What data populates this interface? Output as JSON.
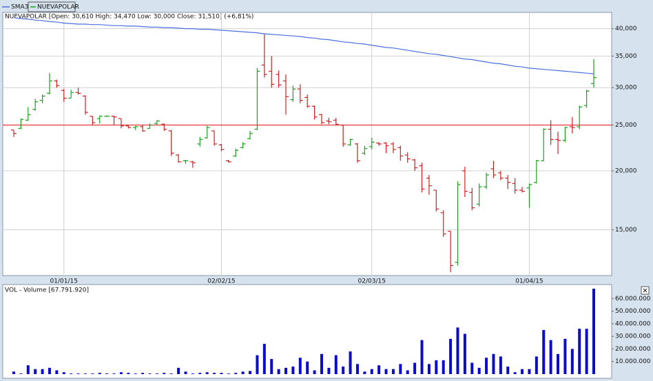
{
  "chart_data": [
    {
      "type": "ohlc",
      "header": "NUEVAPOLAR [Open: 30,610  High: 34,470  Low: 30,000  Close: 31,510] (+6,81%)",
      "categories": [
        null,
        null,
        null,
        null,
        null,
        null,
        null,
        "01/01/15",
        null,
        null,
        null,
        null,
        null,
        null,
        null,
        null,
        null,
        null,
        null,
        null,
        null,
        null,
        null,
        null,
        null,
        null,
        null,
        null,
        null,
        "02/02/15",
        null,
        null,
        null,
        null,
        null,
        null,
        null,
        null,
        null,
        null,
        null,
        null,
        null,
        null,
        null,
        null,
        null,
        null,
        null,
        null,
        "02/03/15",
        null,
        null,
        null,
        null,
        null,
        null,
        null,
        null,
        null,
        null,
        null,
        null,
        null,
        null,
        null,
        null,
        null,
        null,
        null,
        null,
        null,
        "01/04/15",
        null,
        null,
        null,
        null,
        null,
        null,
        null,
        null,
        null
      ],
      "series": [
        {
          "name": "NUEVAPOLAR",
          "up_color": "#1aa01a",
          "down_color": "#cc2020",
          "open": [
            24.4,
            24.6,
            25.6,
            27.0,
            28.2,
            29.2,
            31.0,
            29.6,
            28.5,
            29.3,
            28.8,
            26.1,
            25.8,
            26.1,
            26.1,
            25.8,
            24.9,
            24.7,
            24.8,
            24.6,
            25.2,
            25.1,
            24.3,
            21.6,
            21.0,
            20.9,
            22.8,
            23.5,
            24.3,
            22.7,
            21.0,
            21.5,
            22.4,
            23.4,
            24.5,
            33.5,
            32.5,
            32.0,
            31.0,
            28.3,
            29.8,
            28.6,
            27.4,
            26.3,
            25.5,
            25.6,
            25.0,
            22.7,
            22.8,
            21.8,
            22.5,
            22.9,
            22.9,
            22.8,
            22.4,
            21.6,
            21.1,
            20.5,
            19.3,
            18.2,
            16.3,
            14.9,
            12.8,
            20.0,
            18.0,
            17.0,
            18.5,
            20.2,
            19.8,
            19.3,
            18.8,
            18.2,
            18.4,
            18.9,
            21.0,
            24.5,
            23.3,
            23.2,
            24.8,
            24.8,
            27.5,
            30.61
          ],
          "high": [
            24.4,
            25.8,
            27.3,
            28.4,
            29.0,
            32.2,
            31.2,
            29.8,
            29.7,
            30.0,
            28.9,
            26.1,
            26.2,
            26.2,
            26.2,
            25.8,
            25.0,
            24.9,
            25.0,
            25.2,
            25.6,
            25.2,
            24.4,
            21.7,
            21.1,
            21.0,
            23.6,
            24.9,
            24.3,
            22.8,
            21.1,
            22.3,
            23.0,
            24.3,
            33.0,
            39.0,
            35.0,
            32.6,
            32.0,
            30.3,
            30.5,
            29.0,
            27.5,
            26.4,
            25.9,
            25.9,
            25.0,
            23.4,
            22.9,
            22.6,
            23.5,
            23.0,
            23.0,
            23.0,
            22.6,
            21.9,
            21.2,
            20.8,
            19.6,
            18.2,
            16.5,
            14.9,
            19.0,
            20.4,
            18.4,
            18.8,
            19.8,
            21.0,
            20.0,
            19.6,
            19.3,
            18.5,
            18.8,
            21.1,
            24.6,
            25.6,
            24.2,
            24.8,
            26.0,
            27.5,
            29.7,
            34.47
          ],
          "low": [
            23.6,
            24.5,
            25.5,
            26.8,
            27.8,
            29.0,
            30.0,
            28.0,
            28.5,
            29.0,
            26.3,
            25.0,
            25.2,
            26.0,
            25.0,
            24.6,
            24.6,
            24.4,
            24.2,
            24.6,
            25.0,
            24.3,
            21.5,
            20.8,
            20.7,
            20.3,
            22.5,
            23.4,
            22.6,
            22.0,
            20.8,
            21.4,
            22.3,
            23.3,
            24.4,
            31.5,
            30.0,
            30.0,
            26.3,
            28.0,
            27.8,
            27.2,
            25.7,
            25.1,
            25.1,
            25.0,
            22.5,
            22.6,
            20.8,
            21.6,
            22.2,
            22.6,
            21.8,
            21.8,
            21.0,
            20.8,
            20.0,
            18.0,
            17.8,
            16.4,
            14.5,
            12.2,
            12.6,
            17.6,
            16.5,
            16.8,
            18.3,
            19.3,
            19.1,
            18.3,
            17.9,
            18.0,
            16.7,
            18.8,
            21.0,
            22.7,
            21.7,
            23.0,
            24.0,
            24.5,
            27.2,
            30.0
          ],
          "close": [
            24.0,
            25.7,
            26.3,
            28.0,
            28.8,
            31.0,
            30.3,
            28.5,
            29.3,
            29.2,
            26.6,
            25.3,
            26.1,
            26.1,
            26.0,
            24.9,
            24.7,
            24.8,
            24.3,
            25.0,
            25.5,
            24.5,
            21.8,
            20.9,
            21.0,
            20.8,
            23.3,
            24.7,
            22.8,
            22.2,
            20.9,
            22.1,
            22.8,
            24.0,
            32.5,
            32.0,
            30.5,
            30.4,
            28.7,
            29.8,
            28.2,
            27.4,
            26.0,
            25.3,
            25.4,
            25.1,
            22.8,
            23.3,
            21.0,
            22.3,
            23.0,
            22.8,
            22.6,
            22.2,
            21.5,
            21.2,
            20.3,
            18.3,
            18.6,
            16.6,
            14.7,
            12.6,
            18.7,
            18.1,
            16.7,
            18.5,
            19.6,
            19.6,
            19.3,
            18.9,
            18.2,
            18.1,
            18.7,
            21.0,
            24.5,
            23.3,
            23.2,
            24.7,
            24.7,
            27.3,
            29.5,
            31.51
          ]
        },
        {
          "name": "SMA3",
          "color": "#4a6fe0",
          "values": [
            42.2,
            42.0,
            41.9,
            41.7,
            41.6,
            41.4,
            41.3,
            41.1,
            41.0,
            40.9,
            40.9,
            40.8,
            40.8,
            40.7,
            40.6,
            40.6,
            40.5,
            40.5,
            40.4,
            40.3,
            40.3,
            40.2,
            40.2,
            40.1,
            40.0,
            40.0,
            39.9,
            39.9,
            39.8,
            39.7,
            39.6,
            39.5,
            39.4,
            39.3,
            39.2,
            39.0,
            38.9,
            38.8,
            38.7,
            38.6,
            38.5,
            38.3,
            38.2,
            38.0,
            37.9,
            37.7,
            37.5,
            37.4,
            37.2,
            37.1,
            36.9,
            36.7,
            36.5,
            36.4,
            36.2,
            36.0,
            35.8,
            35.6,
            35.4,
            35.3,
            35.1,
            34.9,
            34.7,
            34.5,
            34.4,
            34.2,
            34.0,
            33.8,
            33.7,
            33.5,
            33.3,
            33.2,
            33.0,
            32.9,
            32.8,
            32.7,
            32.6,
            32.5,
            32.4,
            32.3,
            32.2,
            32.1
          ]
        }
      ],
      "reference_line": {
        "value": 25,
        "color": "#e53535"
      },
      "log_scale": true,
      "ylim": [
        12,
        43.3
      ],
      "yticks": [
        {
          "value": 15,
          "label": "15,000"
        },
        {
          "value": 20,
          "label": "20,000"
        },
        {
          "value": 25,
          "label": "25,000"
        },
        {
          "value": 30,
          "label": "30,000"
        },
        {
          "value": 35,
          "label": "35,000"
        },
        {
          "value": 40,
          "label": "40,000"
        }
      ],
      "grid": true
    },
    {
      "type": "bar",
      "title": "VOL - Volume [67.791.920]",
      "color": "#0a0acc",
      "values": [
        2000000,
        500000,
        7000000,
        4000000,
        4000000,
        5000000,
        3000000,
        1500000,
        500000,
        500000,
        500000,
        500000,
        1000000,
        500000,
        500000,
        1500000,
        1000000,
        500000,
        1000000,
        500000,
        500000,
        1000000,
        500000,
        5000000,
        2000000,
        500000,
        1000000,
        1500000,
        1000000,
        1000000,
        500000,
        1000000,
        2000000,
        2500000,
        15000000,
        24000000,
        12000000,
        4000000,
        5000000,
        6000000,
        13000000,
        10000000,
        3000000,
        16000000,
        5000000,
        15000000,
        6000000,
        18000000,
        8000000,
        2000000,
        4000000,
        7000000,
        4000000,
        4000000,
        8000000,
        3000000,
        9000000,
        27000000,
        8000000,
        11000000,
        11000000,
        28000000,
        37000000,
        32000000,
        9000000,
        5000000,
        13000000,
        16000000,
        14000000,
        6000000,
        1500000,
        4000000,
        4000000,
        14000000,
        35000000,
        27000000,
        16000000,
        28000000,
        20000000,
        36000000,
        36000000,
        67791920
      ],
      "ylim": [
        0,
        70000000
      ],
      "yticks": [
        {
          "value": 10000000,
          "label": "10.000.000"
        },
        {
          "value": 20000000,
          "label": "20.000.000"
        },
        {
          "value": 30000000,
          "label": "30.000.000"
        },
        {
          "value": 40000000,
          "label": "40.000.000"
        },
        {
          "value": 50000000,
          "label": "50.000.000"
        },
        {
          "value": 60000000,
          "label": "60.000.000"
        }
      ],
      "grid": false
    }
  ]
}
